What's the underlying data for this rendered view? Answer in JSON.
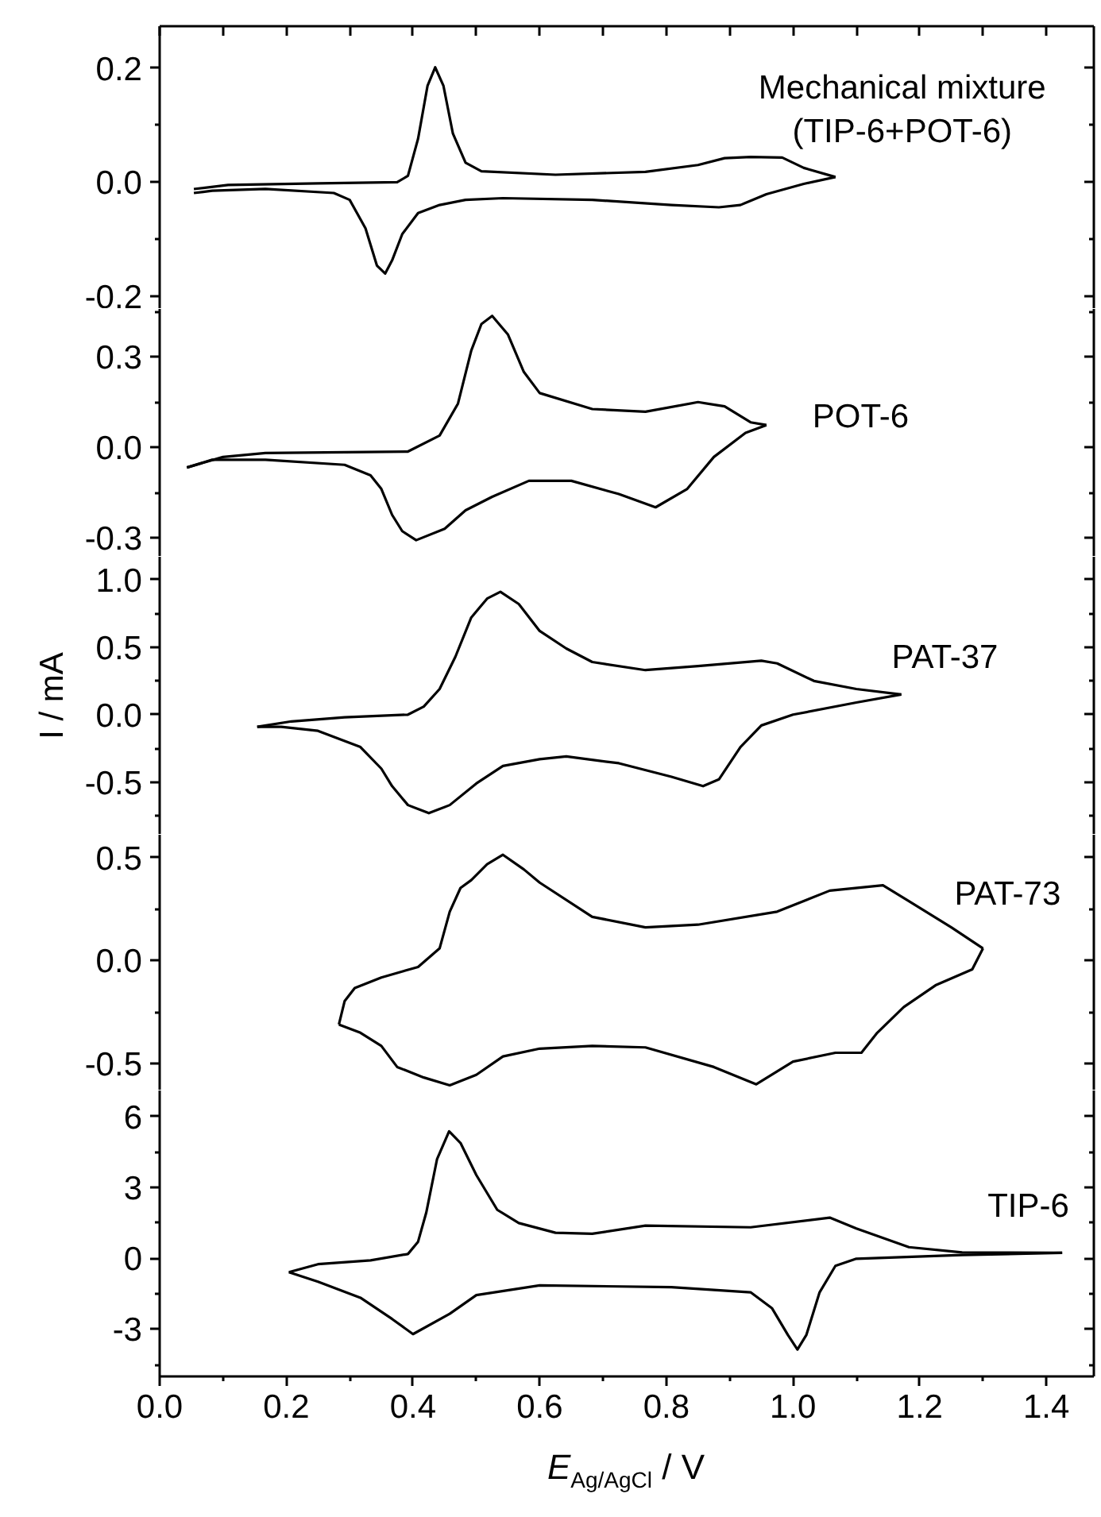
{
  "chart_data": [
    {
      "type": "line",
      "series": [
        {
          "name": "Mechanical mixture\n(TIP-6+POT-6)",
          "color": "#000000",
          "x": [
            0.054,
            0.108,
            0.25,
            0.375,
            0.392,
            0.408,
            0.423,
            0.435,
            0.448,
            0.463,
            0.483,
            0.508,
            0.625,
            0.767,
            0.85,
            0.892,
            0.933,
            0.983,
            1.017,
            1.067
          ],
          "values": [
            -0.012,
            -0.005,
            -0.002,
            0.0,
            0.011,
            0.076,
            0.169,
            0.201,
            0.169,
            0.085,
            0.034,
            0.019,
            0.013,
            0.018,
            0.03,
            0.042,
            0.044,
            0.043,
            0.025,
            0.009
          ]
        },
        {
          "color": "#000000",
          "x": [
            1.067,
            1.017,
            0.958,
            0.917,
            0.883,
            0.808,
            0.683,
            0.542,
            0.483,
            0.442,
            0.408,
            0.383,
            0.367,
            0.356,
            0.343,
            0.325,
            0.3,
            0.275,
            0.167,
            0.083,
            0.054
          ],
          "values": [
            0.009,
            -0.003,
            -0.021,
            -0.04,
            -0.044,
            -0.04,
            -0.031,
            -0.028,
            -0.031,
            -0.04,
            -0.054,
            -0.091,
            -0.137,
            -0.16,
            -0.146,
            -0.081,
            -0.031,
            -0.019,
            -0.012,
            -0.015,
            -0.019
          ]
        }
      ],
      "xlim": [
        0,
        1.475
      ],
      "xticks": [
        0,
        0.1,
        0.2,
        0.3,
        0.4,
        0.5,
        0.6,
        0.7,
        0.8,
        0.9,
        1.0,
        1.1,
        1.2,
        1.3,
        1.4
      ],
      "ylim": [
        -0.222,
        0.273
      ],
      "yticks": [
        {
          "value": -0.2,
          "label": "-0.2"
        },
        {
          "value": -0.1,
          "label": null
        },
        {
          "value": 0,
          "label": "0.0"
        },
        {
          "value": 0.1,
          "label": null
        },
        {
          "value": 0.2,
          "label": "0.2"
        }
      ],
      "tick_labels": "y",
      "line_style": "solid"
    },
    {
      "type": "line",
      "series": [
        {
          "name": "POT-6",
          "color": "#000000",
          "x": [
            0.043,
            0.1,
            0.167,
            0.392,
            0.442,
            0.471,
            0.492,
            0.508,
            0.525,
            0.55,
            0.575,
            0.6,
            0.683,
            0.767,
            0.85,
            0.892,
            0.933,
            0.958
          ],
          "values": [
            -0.067,
            -0.032,
            -0.019,
            -0.014,
            0.039,
            0.145,
            0.321,
            0.409,
            0.436,
            0.374,
            0.25,
            0.18,
            0.127,
            0.118,
            0.15,
            0.136,
            0.083,
            0.074
          ]
        },
        {
          "color": "#000000",
          "x": [
            0.958,
            0.925,
            0.875,
            0.833,
            0.783,
            0.725,
            0.65,
            0.583,
            0.525,
            0.483,
            0.45,
            0.405,
            0.383,
            0.367,
            0.35,
            0.333,
            0.292,
            0.167,
            0.083,
            0.043
          ],
          "values": [
            0.074,
            0.048,
            -0.032,
            -0.138,
            -0.199,
            -0.155,
            -0.111,
            -0.111,
            -0.164,
            -0.209,
            -0.27,
            -0.308,
            -0.278,
            -0.224,
            -0.138,
            -0.093,
            -0.058,
            -0.041,
            -0.041,
            -0.067
          ]
        }
      ],
      "xlim": [
        0,
        1.475
      ],
      "ylim": [
        -0.363,
        0.459
      ],
      "yticks": [
        {
          "value": -0.3,
          "label": "-0.3"
        },
        {
          "value": -0.15,
          "label": null
        },
        {
          "value": 0,
          "label": "0.0"
        },
        {
          "value": 0.15,
          "label": null
        },
        {
          "value": 0.3,
          "label": "0.3"
        },
        {
          "value": 0.45,
          "label": null
        }
      ],
      "tick_labels": "y",
      "line_style": "solid"
    },
    {
      "type": "line",
      "ylabel": "I / mA",
      "series": [
        {
          "name": "PAT-37",
          "color": "#000000",
          "x": [
            0.154,
            0.208,
            0.292,
            0.392,
            0.417,
            0.442,
            0.467,
            0.492,
            0.517,
            0.538,
            0.567,
            0.6,
            0.642,
            0.683,
            0.767,
            0.85,
            0.95,
            0.975,
            1.033,
            1.1,
            1.171
          ],
          "values": [
            -0.09,
            -0.05,
            -0.02,
            0.0,
            0.06,
            0.19,
            0.43,
            0.72,
            0.86,
            0.91,
            0.82,
            0.62,
            0.49,
            0.39,
            0.33,
            0.36,
            0.4,
            0.38,
            0.25,
            0.19,
            0.15
          ]
        },
        {
          "color": "#000000",
          "x": [
            1.171,
            1.1,
            1.0,
            0.95,
            0.917,
            0.883,
            0.858,
            0.808,
            0.725,
            0.642,
            0.6,
            0.542,
            0.5,
            0.458,
            0.425,
            0.392,
            0.367,
            0.35,
            0.317,
            0.25,
            0.192,
            0.154
          ],
          "values": [
            0.15,
            0.09,
            0.0,
            -0.08,
            -0.24,
            -0.48,
            -0.53,
            -0.46,
            -0.36,
            -0.31,
            -0.33,
            -0.38,
            -0.51,
            -0.67,
            -0.73,
            -0.67,
            -0.53,
            -0.4,
            -0.24,
            -0.12,
            -0.09,
            -0.09
          ]
        }
      ],
      "xlim": [
        0,
        1.475
      ],
      "ylim": [
        -0.89,
        1.17
      ],
      "yticks": [
        {
          "value": -0.75,
          "label": null
        },
        {
          "value": -0.5,
          "label": "-0.5"
        },
        {
          "value": -0.25,
          "label": null
        },
        {
          "value": 0,
          "label": "0.0"
        },
        {
          "value": 0.25,
          "label": null
        },
        {
          "value": 0.5,
          "label": "0.5"
        },
        {
          "value": 0.75,
          "label": null
        },
        {
          "value": 1.0,
          "label": "1.0"
        }
      ],
      "tick_labels": "y",
      "line_style": "solid"
    },
    {
      "type": "line",
      "series": [
        {
          "name": "PAT-73",
          "color": "#000000",
          "x": [
            0.283,
            0.292,
            0.308,
            0.35,
            0.408,
            0.442,
            0.458,
            0.475,
            0.492,
            0.517,
            0.542,
            0.575,
            0.6,
            0.683,
            0.767,
            0.85,
            0.975,
            1.058,
            1.142,
            1.183,
            1.25,
            1.3
          ],
          "values": [
            -0.31,
            -0.197,
            -0.133,
            -0.082,
            -0.031,
            0.059,
            0.237,
            0.352,
            0.39,
            0.467,
            0.513,
            0.442,
            0.378,
            0.212,
            0.161,
            0.174,
            0.237,
            0.339,
            0.365,
            0.288,
            0.161,
            0.059
          ]
        },
        {
          "color": "#000000",
          "x": [
            1.3,
            1.283,
            1.225,
            1.175,
            1.133,
            1.108,
            1.067,
            1.0,
            0.942,
            0.875,
            0.767,
            0.683,
            0.6,
            0.542,
            0.5,
            0.458,
            0.417,
            0.375,
            0.35,
            0.317,
            0.283
          ],
          "values": [
            0.059,
            -0.043,
            -0.12,
            -0.225,
            -0.35,
            -0.447,
            -0.447,
            -0.49,
            -0.6,
            -0.516,
            -0.421,
            -0.414,
            -0.427,
            -0.465,
            -0.554,
            -0.605,
            -0.567,
            -0.516,
            -0.414,
            -0.35,
            -0.31
          ]
        }
      ],
      "xlim": [
        0,
        1.475
      ],
      "ylim": [
        -0.63,
        0.61
      ],
      "yticks": [
        {
          "value": -0.5,
          "label": "-0.5"
        },
        {
          "value": -0.25,
          "label": null
        },
        {
          "value": 0,
          "label": "0.0"
        },
        {
          "value": 0.25,
          "label": null
        },
        {
          "value": 0.5,
          "label": "0.5"
        }
      ],
      "tick_labels": "y",
      "line_style": "solid"
    },
    {
      "type": "line",
      "xlabel": "E$_{Ag/AgCl}$ / V",
      "series": [
        {
          "name": "TIP-6",
          "color": "#000000",
          "x": [
            0.204,
            0.25,
            0.333,
            0.392,
            0.408,
            0.421,
            0.438,
            0.457,
            0.475,
            0.5,
            0.533,
            0.567,
            0.625,
            0.683,
            0.767,
            0.933,
            1.058,
            1.1,
            1.183,
            1.267,
            1.425
          ],
          "values": [
            -0.59,
            -0.25,
            -0.09,
            0.18,
            0.7,
            1.94,
            4.2,
            5.37,
            4.88,
            3.52,
            2.05,
            1.49,
            1.08,
            1.04,
            1.38,
            1.31,
            1.72,
            1.26,
            0.47,
            0.25,
            0.23
          ]
        },
        {
          "color": "#000000",
          "x": [
            1.425,
            1.267,
            1.1,
            1.067,
            1.042,
            1.021,
            1.007,
            0.992,
            0.967,
            0.933,
            0.808,
            0.6,
            0.5,
            0.458,
            0.4,
            0.367,
            0.317,
            0.25,
            0.204
          ],
          "values": [
            0.23,
            0.14,
            -0.02,
            -0.32,
            -1.44,
            -3.25,
            -3.86,
            -3.25,
            -2.12,
            -1.44,
            -1.22,
            -1.15,
            -1.56,
            -2.35,
            -3.21,
            -2.57,
            -1.67,
            -0.99,
            -0.59
          ]
        }
      ],
      "xlim": [
        0,
        1.475
      ],
      "xticks": [
        {
          "value": 0,
          "label": "0.0"
        },
        {
          "value": 0.1,
          "label": null
        },
        {
          "value": 0.2,
          "label": "0.2"
        },
        {
          "value": 0.3,
          "label": null
        },
        {
          "value": 0.4,
          "label": "0.4"
        },
        {
          "value": 0.5,
          "label": null
        },
        {
          "value": 0.6,
          "label": "0.6"
        },
        {
          "value": 0.7,
          "label": null
        },
        {
          "value": 0.8,
          "label": "0.8"
        },
        {
          "value": 0.9,
          "label": null
        },
        {
          "value": 1.0,
          "label": "1.0"
        },
        {
          "value": 1.1,
          "label": null
        },
        {
          "value": 1.2,
          "label": "1.2"
        },
        {
          "value": 1.3,
          "label": null
        },
        {
          "value": 1.4,
          "label": "1.4"
        }
      ],
      "ylim": [
        -5.0,
        7.1
      ],
      "yticks": [
        {
          "value": -4.5,
          "label": null
        },
        {
          "value": -3,
          "label": "-3"
        },
        {
          "value": -1.5,
          "label": null
        },
        {
          "value": 0,
          "label": "0"
        },
        {
          "value": 1.5,
          "label": null
        },
        {
          "value": 3,
          "label": "3"
        },
        {
          "value": 4.5,
          "label": null
        },
        {
          "value": 6,
          "label": "6"
        }
      ],
      "line_style": "solid"
    }
  ]
}
